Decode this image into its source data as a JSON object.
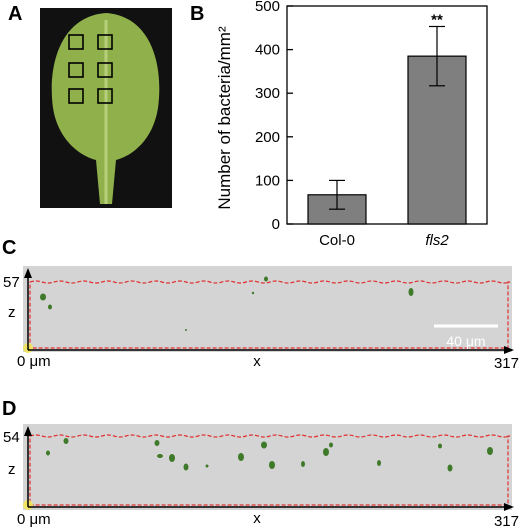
{
  "panels": {
    "a": {
      "label": "A"
    },
    "b": {
      "label": "B"
    },
    "c": {
      "label": "C",
      "z_max": "57",
      "x_max": "317",
      "origin": "0 μm",
      "z_label": "z",
      "x_label": "x",
      "scale_bar": "40 μm"
    },
    "d": {
      "label": "D",
      "z_max": "54",
      "x_max": "317",
      "origin": "0 μm",
      "z_label": "z",
      "x_label": "x"
    }
  },
  "chart_data": {
    "type": "bar",
    "categories": [
      "Col-0",
      "fls2"
    ],
    "values": [
      67,
      385
    ],
    "errors": [
      33,
      68
    ],
    "significance": [
      "",
      "**"
    ],
    "title": "",
    "xlabel": "",
    "ylabel": "Number of bacteria/mm²",
    "ylim": [
      0,
      500
    ],
    "yticks": [
      "0",
      "100",
      "200",
      "300",
      "400",
      "500"
    ],
    "bar_color": "#7f7f7f"
  },
  "colors": {
    "leaf": "#8fb04a",
    "leaf_background": "#111111",
    "sample_box": "#000000",
    "tissue_outline": "#e03030",
    "micrograph_background": "#d4d4d4",
    "bacteria": "#3f7a2a"
  }
}
